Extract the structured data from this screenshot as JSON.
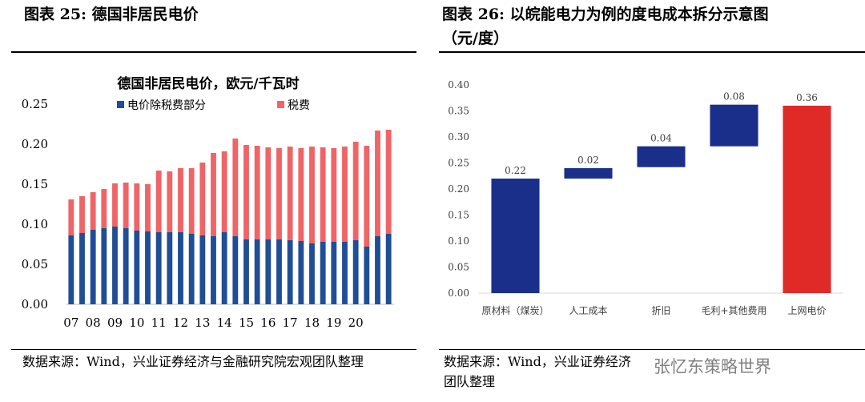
{
  "left": {
    "figure_title": "图表 25:  德国非居民电价",
    "source": "数据来源：Wind，兴业证券经济与金融研究院宏观团队整理"
  },
  "right": {
    "figure_title_line1": "图表 26:  以皖能电力为例的度电成本拆分示意图",
    "figure_title_line2": "（元/度）",
    "source_line1": "数据来源：Wind，兴业证券经济",
    "source_line2": "团队整理",
    "watermark": "张忆东策略世界"
  },
  "chart_data": [
    {
      "type": "bar",
      "stacked": true,
      "title": "德国非居民电价，欧元/千瓦时",
      "legend": [
        {
          "name": "电价除税费部分",
          "color": "#1f4e96"
        },
        {
          "name": "税费",
          "color": "#ef6466"
        }
      ],
      "legend_position": "top",
      "ylim": [
        0,
        0.25
      ],
      "yticks": [
        "0.00",
        "0.05",
        "0.10",
        "0.15",
        "0.20",
        "0.25"
      ],
      "xtick_labels": [
        "07",
        "08",
        "09",
        "10",
        "11",
        "12",
        "13",
        "14",
        "15",
        "16",
        "17",
        "18",
        "19",
        "20"
      ],
      "xtick_every": 2,
      "series": [
        {
          "name": "电价除税费部分",
          "color": "#1f4e96",
          "values": [
            0.086,
            0.089,
            0.093,
            0.095,
            0.097,
            0.095,
            0.092,
            0.091,
            0.09,
            0.09,
            0.09,
            0.088,
            0.086,
            0.085,
            0.09,
            0.085,
            0.081,
            0.081,
            0.081,
            0.081,
            0.08,
            0.079,
            0.076,
            0.078,
            0.078,
            0.078,
            0.08,
            0.072,
            0.085,
            0.088
          ]
        },
        {
          "name": "税费",
          "color": "#ef6466",
          "values": [
            0.045,
            0.046,
            0.047,
            0.049,
            0.054,
            0.057,
            0.059,
            0.059,
            0.077,
            0.076,
            0.08,
            0.082,
            0.091,
            0.104,
            0.101,
            0.122,
            0.118,
            0.117,
            0.115,
            0.114,
            0.117,
            0.116,
            0.121,
            0.118,
            0.117,
            0.119,
            0.123,
            0.126,
            0.132,
            0.13
          ]
        }
      ],
      "grid": false
    },
    {
      "type": "bar",
      "subtype": "waterfall",
      "ylim": [
        0,
        0.4
      ],
      "yticks": [
        "0.00",
        "0.05",
        "0.10",
        "0.15",
        "0.20",
        "0.25",
        "0.30",
        "0.35",
        "0.40"
      ],
      "categories": [
        "原材料（煤炭）",
        "人工成本",
        "折旧",
        "毛利+其他费用",
        "上网电价"
      ],
      "values": [
        0.22,
        0.02,
        0.04,
        0.08,
        0.36
      ],
      "bases": [
        0,
        0.22,
        0.242,
        0.282,
        0
      ],
      "data_labels": [
        "0.22",
        "0.02",
        "0.04",
        "0.08",
        "0.36"
      ],
      "colors": [
        "#1a2f8a",
        "#1a2f8a",
        "#1a2f8a",
        "#1a2f8a",
        "#e02a28"
      ],
      "grid": false
    }
  ]
}
